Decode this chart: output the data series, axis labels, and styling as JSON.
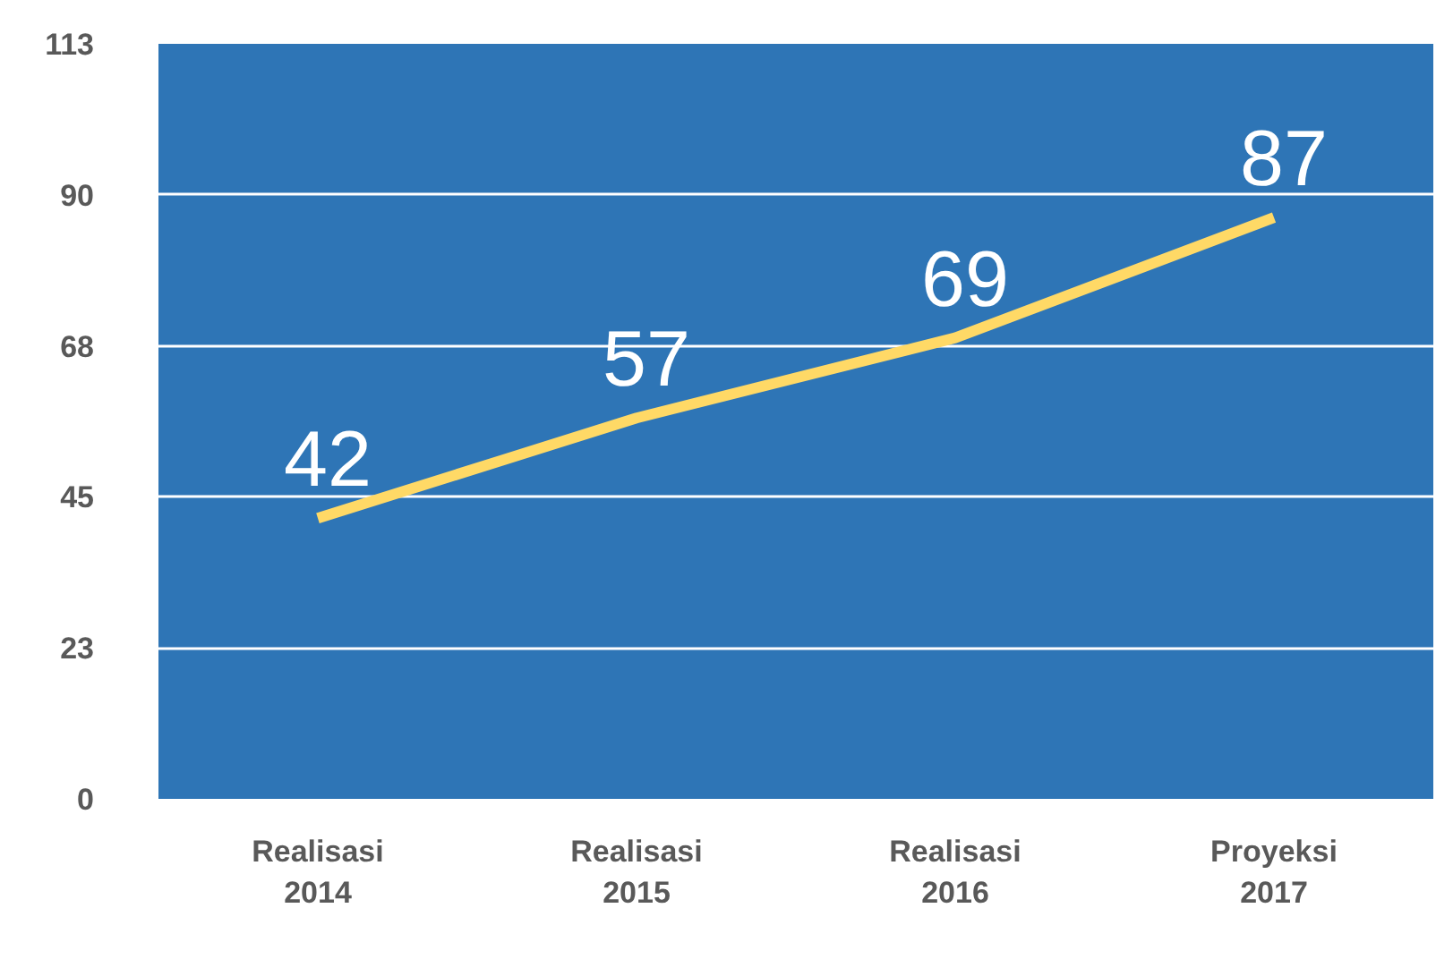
{
  "chart_data": {
    "type": "line",
    "categories": [
      "Realisasi 2014",
      "Realisasi 2015",
      "Realisasi 2016",
      "Proyeksi 2017"
    ],
    "series": [
      {
        "color": "#ffd966",
        "values": [
          42,
          57,
          69,
          87
        ]
      }
    ],
    "ylim": [
      0,
      113
    ],
    "yticks": [
      0,
      {
        "value": 22.6,
        "label": "23"
      },
      {
        "value": 45.2,
        "label": "45"
      },
      {
        "value": 67.8,
        "label": "68"
      },
      {
        "value": 90.4,
        "label": "90"
      },
      113
    ],
    "grid": "y",
    "data_labels": true,
    "marker": "none",
    "line_style": "solid"
  }
}
